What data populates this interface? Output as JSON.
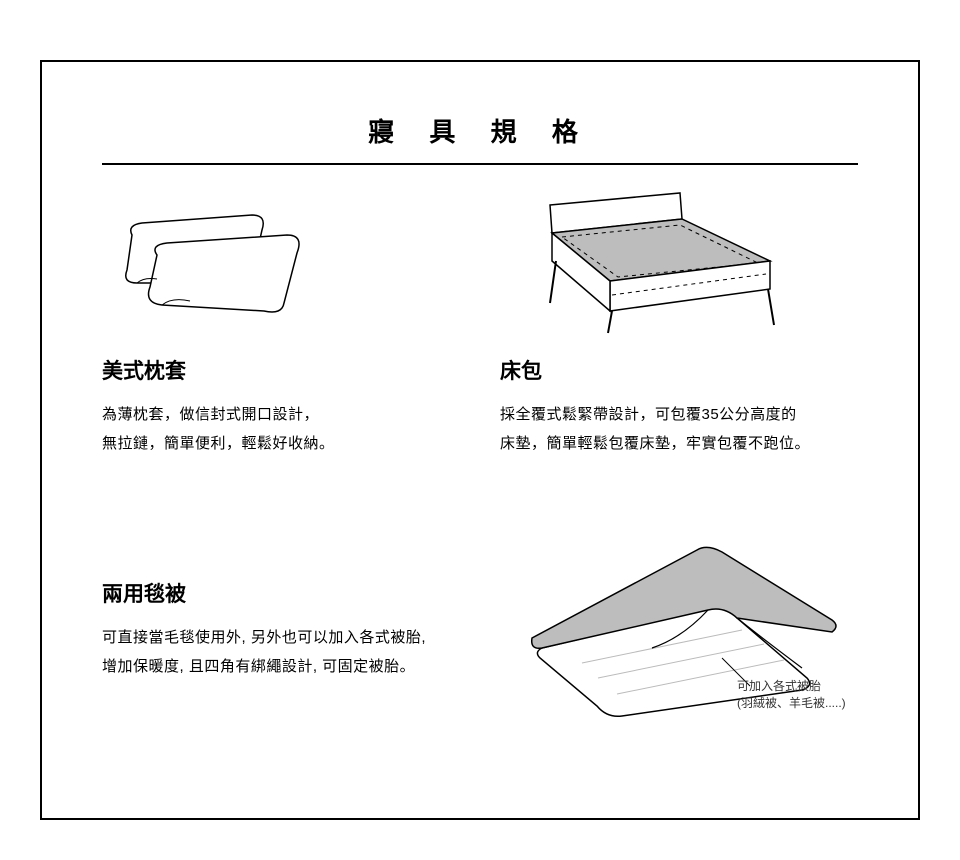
{
  "page": {
    "title": "寢 具 規 格",
    "border_color": "#000000",
    "background": "#ffffff",
    "illustration_fill": "#bdbdbd",
    "illustration_stroke": "#000000"
  },
  "pillow": {
    "title": "美式枕套",
    "desc": "為薄枕套，做信封式開口設計，\n無拉鏈，簡單便利，輕鬆好收納。"
  },
  "sheet": {
    "title": "床包",
    "desc": "採全覆式鬆緊帶設計，可包覆35公分高度的\n床墊，簡單輕鬆包覆床墊，牢實包覆不跑位。"
  },
  "duvet": {
    "title": "兩用毯被",
    "desc": "可直接當毛毯使用外, 另外也可以加入各式被胎,\n增加保暖度, 且四角有綁繩設計, 可固定被胎。",
    "callout_line1": "可加入各式被胎",
    "callout_line2": "(羽絨被、羊毛被.....)"
  }
}
